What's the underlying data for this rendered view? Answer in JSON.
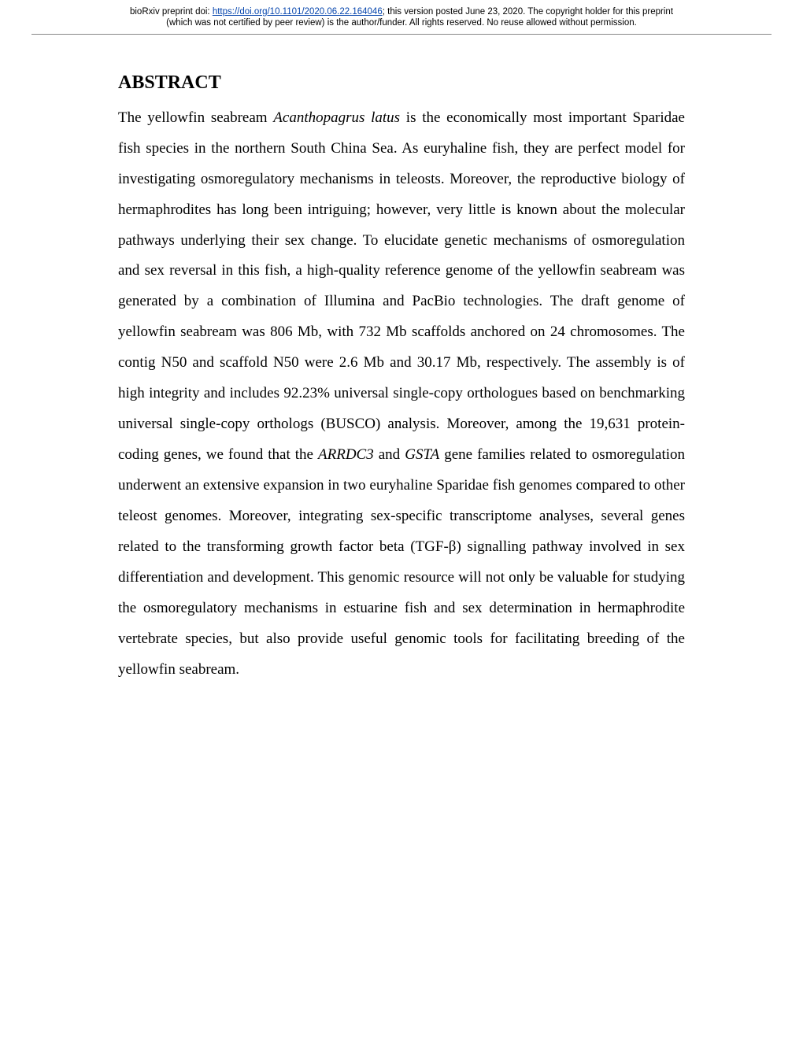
{
  "header": {
    "prefix": "bioRxiv preprint doi: ",
    "doi_url": "https://doi.org/10.1101/2020.06.22.164046",
    "line1_suffix": "; this version posted June 23, 2020. The copyright holder for this preprint",
    "line2": "(which was not certified by peer review) is the author/funder. All rights reserved. No reuse allowed without permission."
  },
  "abstract": {
    "heading": "ABSTRACT",
    "p1_a": "The yellowfin seabream ",
    "species": "Acanthopagrus latus",
    "p1_b": " is the economically most important Sparidae fish species in the northern South China Sea. As euryhaline fish, they are perfect model for investigating osmoregulatory mechanisms in teleosts. Moreover, the reproductive biology of hermaphrodites has long been intriguing; however, very little is known about the molecular pathways underlying their sex change. To elucidate genetic mechanisms of osmoregulation and sex reversal in this fish, a high-quality reference genome of the yellowfin seabream was generated by a combination of Illumina and PacBio technologies. The draft genome of yellowfin seabream was 806 Mb, with 732 Mb scaffolds anchored on 24 chromosomes. The contig N50 and scaffold N50 were 2.6 Mb and 30.17 Mb, respectively. The assembly is of high integrity and includes 92.23% universal single-copy orthologues based on benchmarking universal single-copy orthologs (BUSCO) analysis. Moreover, among the 19,631 protein-coding genes, we found that the ",
    "gene1": "ARRDC3",
    "p1_c": " and ",
    "gene2": "GSTA",
    "p1_d": " gene families related to osmoregulation underwent an extensive expansion in two euryhaline Sparidae fish genomes compared to other teleost genomes. Moreover, integrating sex-specific transcriptome analyses, several genes related to the transforming growth factor beta (TGF-β) signalling pathway involved in sex differentiation and development. This genomic resource will not only be valuable for studying the osmoregulatory mechanisms in estuarine fish and sex determination in hermaphrodite vertebrate species, but also provide useful genomic tools for facilitating breeding of the yellowfin seabream."
  }
}
